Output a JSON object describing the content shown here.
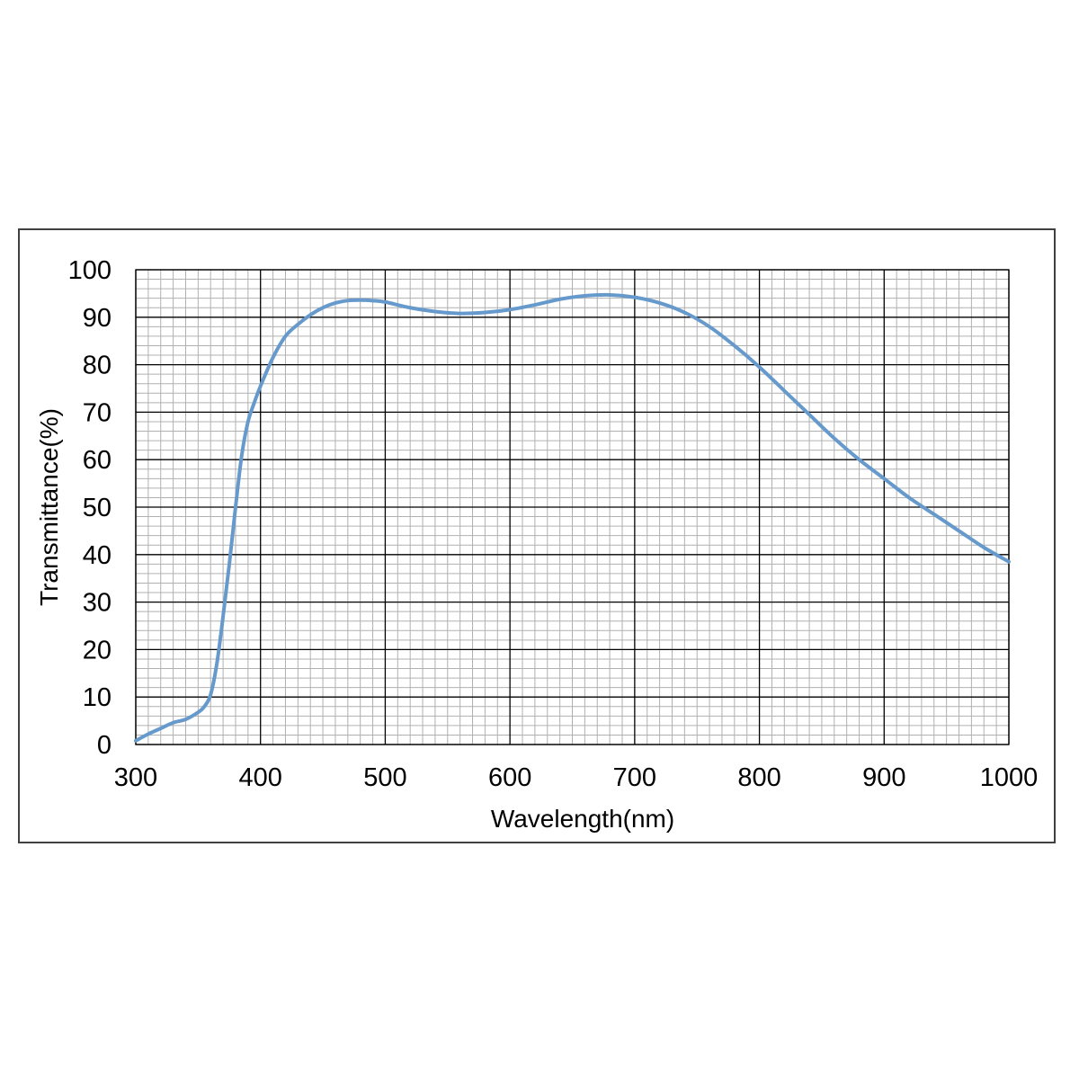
{
  "chart_data": {
    "type": "line",
    "xlabel": "Wavelength(nm)",
    "ylabel": "Transmittance(%)",
    "xlim": [
      300,
      1000
    ],
    "ylim": [
      0,
      100
    ],
    "x_ticks": [
      "300",
      "400",
      "500",
      "600",
      "700",
      "800",
      "900",
      "1000"
    ],
    "y_ticks": [
      "0",
      "10",
      "20",
      "30",
      "40",
      "50",
      "60",
      "70",
      "80",
      "90",
      "100"
    ],
    "grid": {
      "major": true,
      "minor": true,
      "x_minor_step": 10,
      "y_minor_step": 2
    },
    "legend": "none",
    "series": [
      {
        "color": "#6699cc",
        "x": [
          300,
          310,
          320,
          330,
          340,
          350,
          355,
          360,
          365,
          370,
          375,
          380,
          385,
          390,
          395,
          400,
          410,
          420,
          430,
          440,
          450,
          460,
          470,
          480,
          490,
          500,
          520,
          540,
          560,
          580,
          600,
          620,
          640,
          660,
          680,
          700,
          720,
          740,
          760,
          780,
          800,
          820,
          840,
          860,
          880,
          900,
          920,
          940,
          960,
          980,
          1000
        ],
        "y": [
          0.8,
          2.2,
          3.4,
          4.6,
          5.3,
          6.8,
          8.0,
          10.5,
          17,
          27,
          38,
          50,
          61,
          68,
          72,
          75.5,
          81.5,
          86,
          88.5,
          90.5,
          92,
          93,
          93.5,
          93.6,
          93.5,
          93.2,
          92,
          91.2,
          90.8,
          91,
          91.6,
          92.6,
          93.8,
          94.5,
          94.7,
          94.2,
          93,
          91,
          88,
          84,
          79.5,
          74.5,
          69.5,
          64.5,
          60,
          56,
          52,
          48.5,
          45,
          41.5,
          38.5
        ]
      }
    ]
  }
}
